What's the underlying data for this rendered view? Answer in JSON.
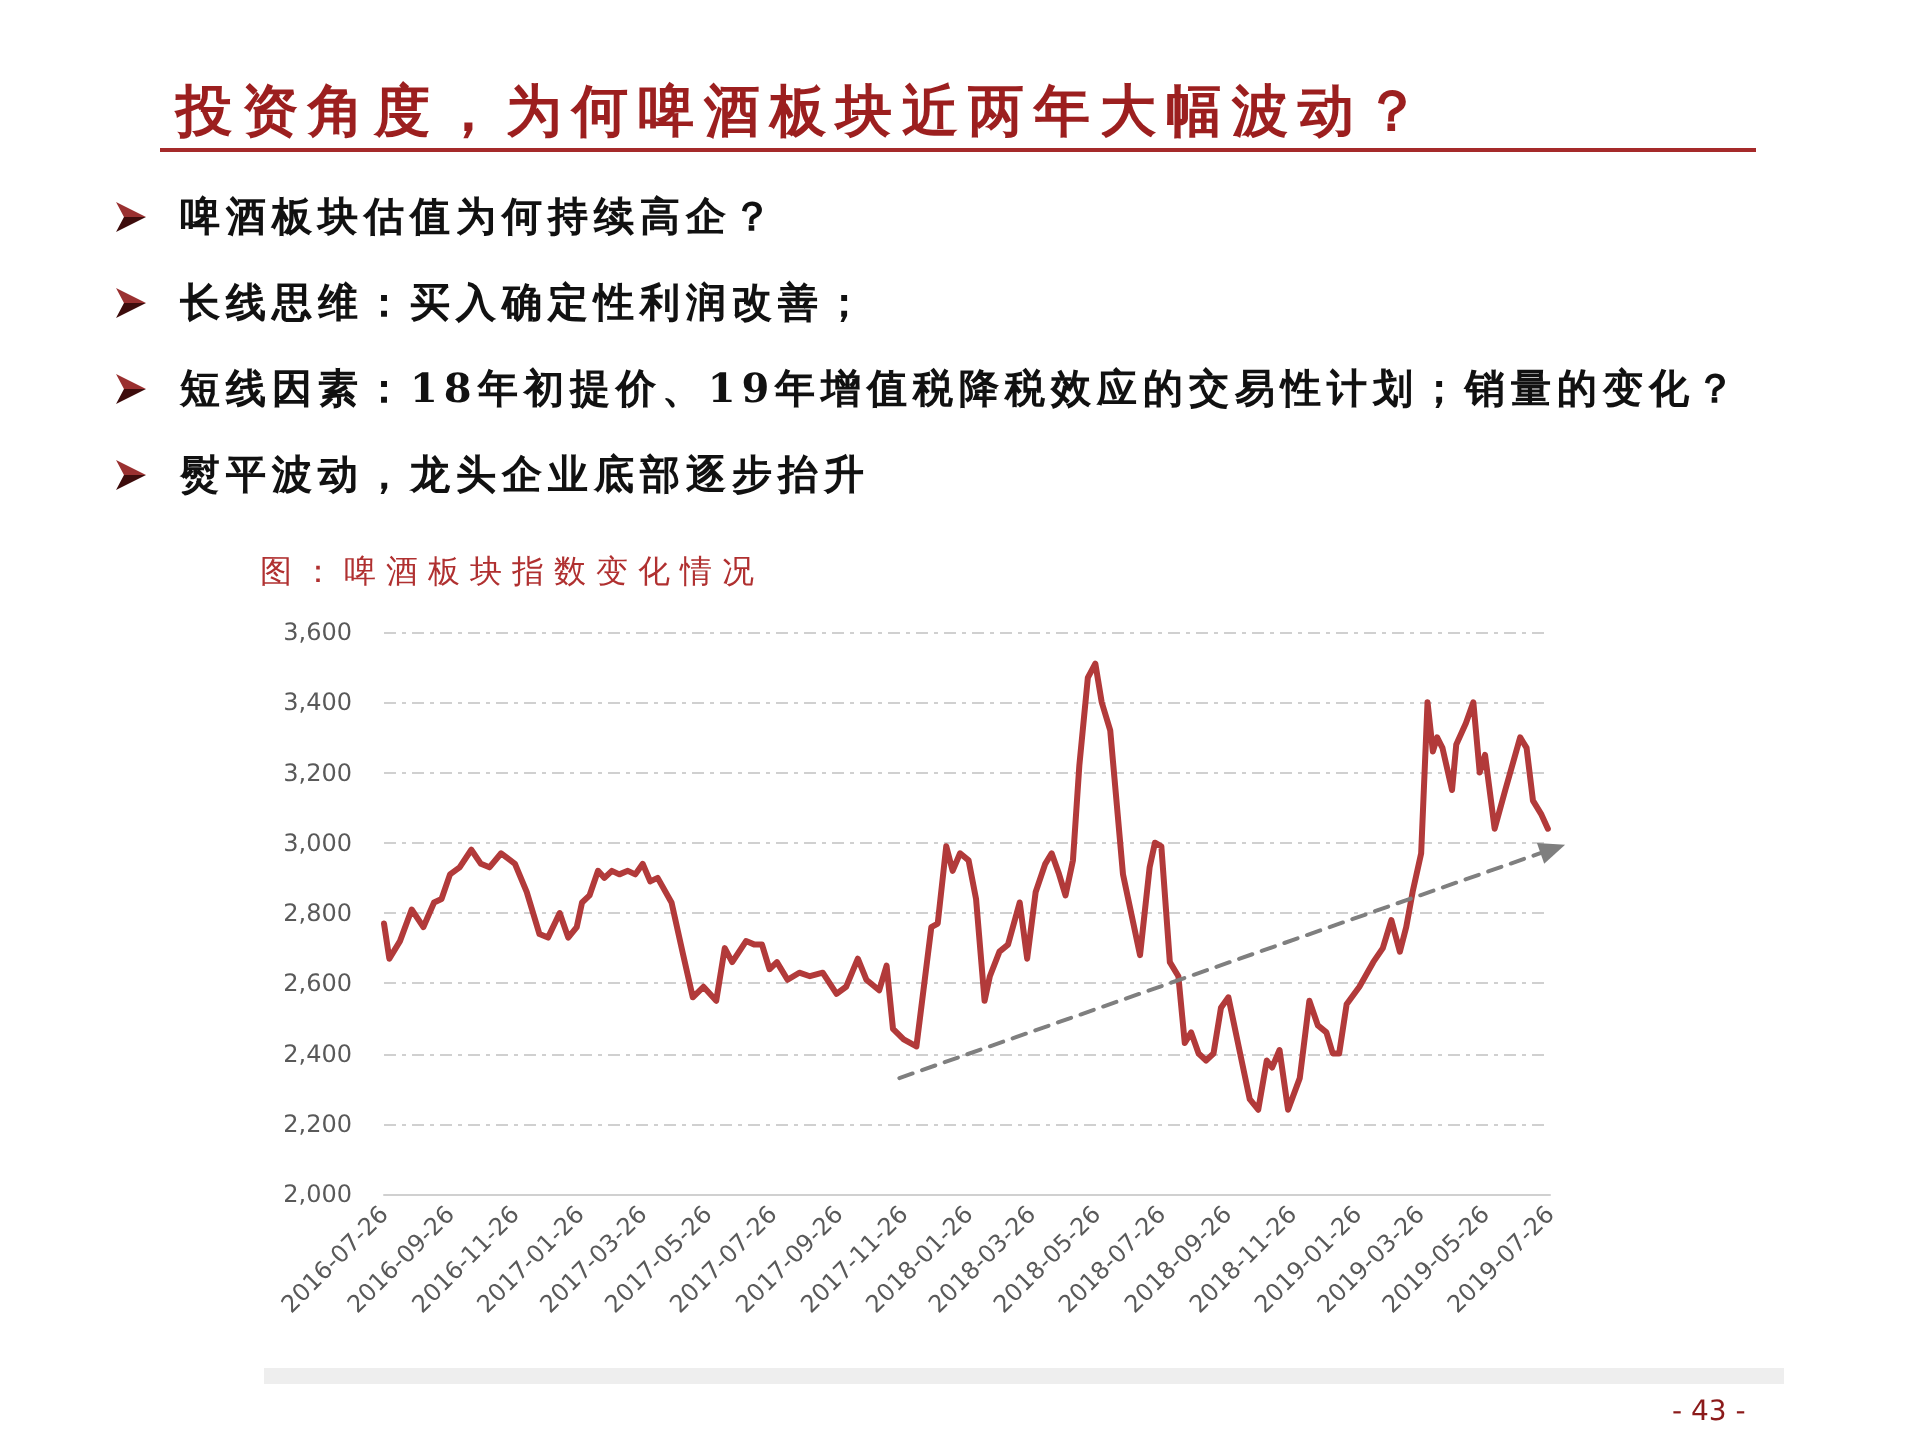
{
  "chart_data": {
    "type": "line",
    "title": "投资角度，为何啤酒板块近两年大幅波动？",
    "subtitle": "图：啤酒板块指数变化情况",
    "annotations": [
      "啤酒板块估值为何持续高企？",
      "长线思维：买入确定性利润改善；",
      "短线因素：18年初提价、19年增值税降税效应的交易性计划；销量的变化？",
      "熨平波动，龙头企业底部逐步抬升",
      "- 43 -"
    ],
    "series": [
      {
        "color": "#b23a3a",
        "x": [
          "2016-07-26",
          "2016-07-31",
          "2016-08-10",
          "2016-08-21",
          "2016-09-01",
          "2016-09-11",
          "2016-09-18",
          "2016-09-26",
          "2016-10-05",
          "2016-10-16",
          "2016-10-25",
          "2016-11-02",
          "2016-11-13",
          "2016-11-26",
          "2016-12-07",
          "2016-12-19",
          "2016-12-27",
          "2017-01-07",
          "2017-01-15",
          "2017-01-23",
          "2017-01-28",
          "2017-02-04",
          "2017-02-12",
          "2017-02-18",
          "2017-02-25",
          "2017-03-04",
          "2017-03-12",
          "2017-03-19",
          "2017-03-26",
          "2017-04-02",
          "2017-04-09",
          "2017-04-22",
          "2017-05-03",
          "2017-05-12",
          "2017-05-22",
          "2017-06-03",
          "2017-06-11",
          "2017-06-18",
          "2017-07-01",
          "2017-07-09",
          "2017-07-16",
          "2017-07-23",
          "2017-07-30",
          "2017-08-09",
          "2017-08-20",
          "2017-08-30",
          "2017-09-11",
          "2017-09-24",
          "2017-10-03",
          "2017-10-14",
          "2017-10-22",
          "2017-11-03",
          "2017-11-10",
          "2017-11-16",
          "2017-11-26",
          "2017-12-08",
          "2017-12-22",
          "2017-12-28",
          "2018-01-05",
          "2018-01-11",
          "2018-01-18",
          "2018-01-26",
          "2018-02-02",
          "2018-02-10",
          "2018-02-15",
          "2018-02-24",
          "2018-03-04",
          "2018-03-15",
          "2018-03-22",
          "2018-03-30",
          "2018-04-08",
          "2018-04-14",
          "2018-04-21",
          "2018-04-27",
          "2018-05-04",
          "2018-05-10",
          "2018-05-18",
          "2018-05-25",
          "2018-05-31",
          "2018-06-08",
          "2018-06-20",
          "2018-07-06",
          "2018-07-15",
          "2018-07-20",
          "2018-07-26",
          "2018-08-03",
          "2018-08-11",
          "2018-08-17",
          "2018-08-23",
          "2018-08-30",
          "2018-09-06",
          "2018-09-13",
          "2018-09-20",
          "2018-09-27",
          "2018-10-08",
          "2018-10-17",
          "2018-10-25",
          "2018-11-02",
          "2018-11-07",
          "2018-11-14",
          "2018-11-22",
          "2018-12-03",
          "2018-12-12",
          "2018-12-20",
          "2018-12-28",
          "2019-01-03",
          "2019-01-09",
          "2019-01-16",
          "2019-01-28",
          "2019-02-10",
          "2019-02-19",
          "2019-02-27",
          "2019-03-07",
          "2019-03-13",
          "2019-03-19",
          "2019-03-27",
          "2019-04-02",
          "2019-04-07",
          "2019-04-11",
          "2019-04-16",
          "2019-04-25",
          "2019-04-29",
          "2019-05-08",
          "2019-05-15",
          "2019-05-21",
          "2019-05-26",
          "2019-06-04",
          "2019-06-14",
          "2019-06-28",
          "2019-07-04",
          "2019-07-10",
          "2019-07-18",
          "2019-07-24"
        ],
        "values": [
          2770,
          2670,
          2720,
          2810,
          2760,
          2830,
          2840,
          2910,
          2930,
          2980,
          2940,
          2930,
          2970,
          2940,
          2860,
          2740,
          2730,
          2800,
          2730,
          2760,
          2830,
          2850,
          2920,
          2900,
          2920,
          2910,
          2920,
          2910,
          2940,
          2890,
          2900,
          2830,
          2680,
          2560,
          2590,
          2550,
          2700,
          2660,
          2720,
          2710,
          2710,
          2640,
          2660,
          2610,
          2630,
          2620,
          2630,
          2570,
          2590,
          2670,
          2610,
          2580,
          2650,
          2470,
          2440,
          2420,
          2760,
          2770,
          2990,
          2920,
          2970,
          2950,
          2840,
          2550,
          2620,
          2690,
          2710,
          2830,
          2670,
          2860,
          2940,
          2970,
          2910,
          2850,
          2950,
          3220,
          3470,
          3510,
          3400,
          3320,
          2910,
          2680,
          2930,
          3000,
          2990,
          2660,
          2620,
          2430,
          2460,
          2400,
          2380,
          2400,
          2530,
          2560,
          2400,
          2270,
          2240,
          2380,
          2360,
          2410,
          2240,
          2330,
          2550,
          2480,
          2460,
          2400,
          2400,
          2540,
          2590,
          2660,
          2700,
          2780,
          2690,
          2760,
          2860,
          2970,
          3400,
          3260,
          3300,
          3270,
          3150,
          3280,
          3340,
          3400,
          3200,
          3250,
          3040,
          3150,
          3300,
          3270,
          3120,
          3080,
          3040
        ]
      },
      {
        "type": "line",
        "color": "#7f7f7f",
        "line_style": "dashed",
        "x": [
          "2017-11-22",
          "2019-07-26"
        ],
        "values": [
          2330,
          2980
        ]
      }
    ],
    "xlim": [
      "2016-07-26",
      "2019-07-26"
    ],
    "xticks": [
      "2016-07-26",
      "2016-09-26",
      "2016-11-26",
      "2017-01-26",
      "2017-03-26",
      "2017-05-26",
      "2017-07-26",
      "2017-09-26",
      "2017-11-26",
      "2018-01-26",
      "2018-03-26",
      "2018-05-26",
      "2018-07-26",
      "2018-09-26",
      "2018-11-26",
      "2019-01-26",
      "2019-03-26",
      "2019-05-26",
      "2019-07-26"
    ],
    "ylim": [
      2000,
      3600
    ],
    "yticks": [
      {
        "value": 2000,
        "label": "2,000"
      },
      {
        "value": 2200,
        "label": "2,200"
      },
      {
        "value": 2400,
        "label": "2,400"
      },
      {
        "value": 2600,
        "label": "2,600"
      },
      {
        "value": 2800,
        "label": "2,800"
      },
      {
        "value": 3000,
        "label": "3,000"
      },
      {
        "value": 3200,
        "label": "3,200"
      },
      {
        "value": 3400,
        "label": "3,400"
      },
      {
        "value": 3600,
        "label": "3,600"
      }
    ],
    "grid": "y"
  }
}
